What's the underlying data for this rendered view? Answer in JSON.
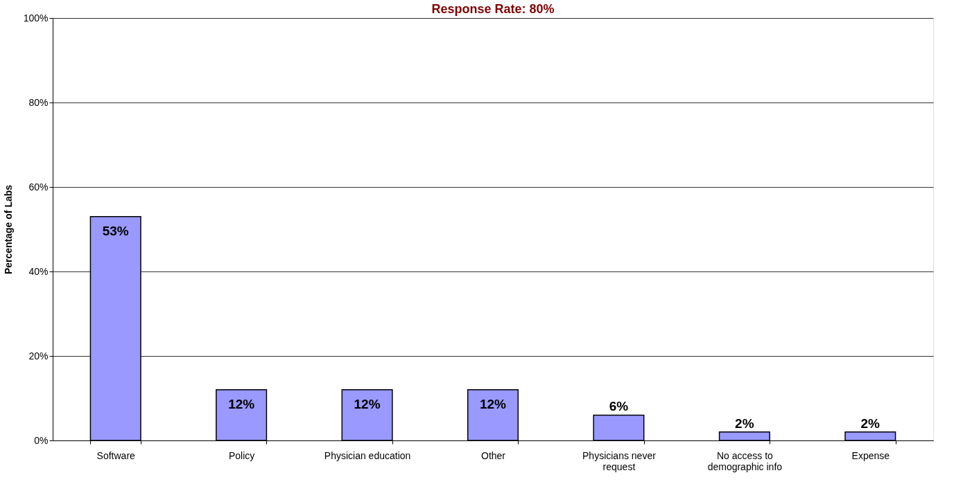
{
  "chart_data": {
    "type": "bar",
    "title": "Response Rate:  80%",
    "ylabel": "Percentage of Labs",
    "categories": [
      "Software",
      "Policy",
      "Physician education",
      "Other",
      "Physicians never request",
      "No access to demographic info",
      "Expense"
    ],
    "values": [
      53,
      12,
      12,
      12,
      6,
      2,
      2
    ],
    "value_labels": [
      "53%",
      "12%",
      "12%",
      "12%",
      "6%",
      "2%",
      "2%"
    ],
    "color": "#9999ff",
    "ylim": [
      0,
      100
    ],
    "yticks": [
      {
        "value": 0,
        "label": "0%"
      },
      {
        "value": 20,
        "label": "20%"
      },
      {
        "value": 40,
        "label": "40%"
      },
      {
        "value": 60,
        "label": "60%"
      },
      {
        "value": 80,
        "label": "80%"
      },
      {
        "value": 100,
        "label": "100%"
      }
    ],
    "grid": "y"
  }
}
